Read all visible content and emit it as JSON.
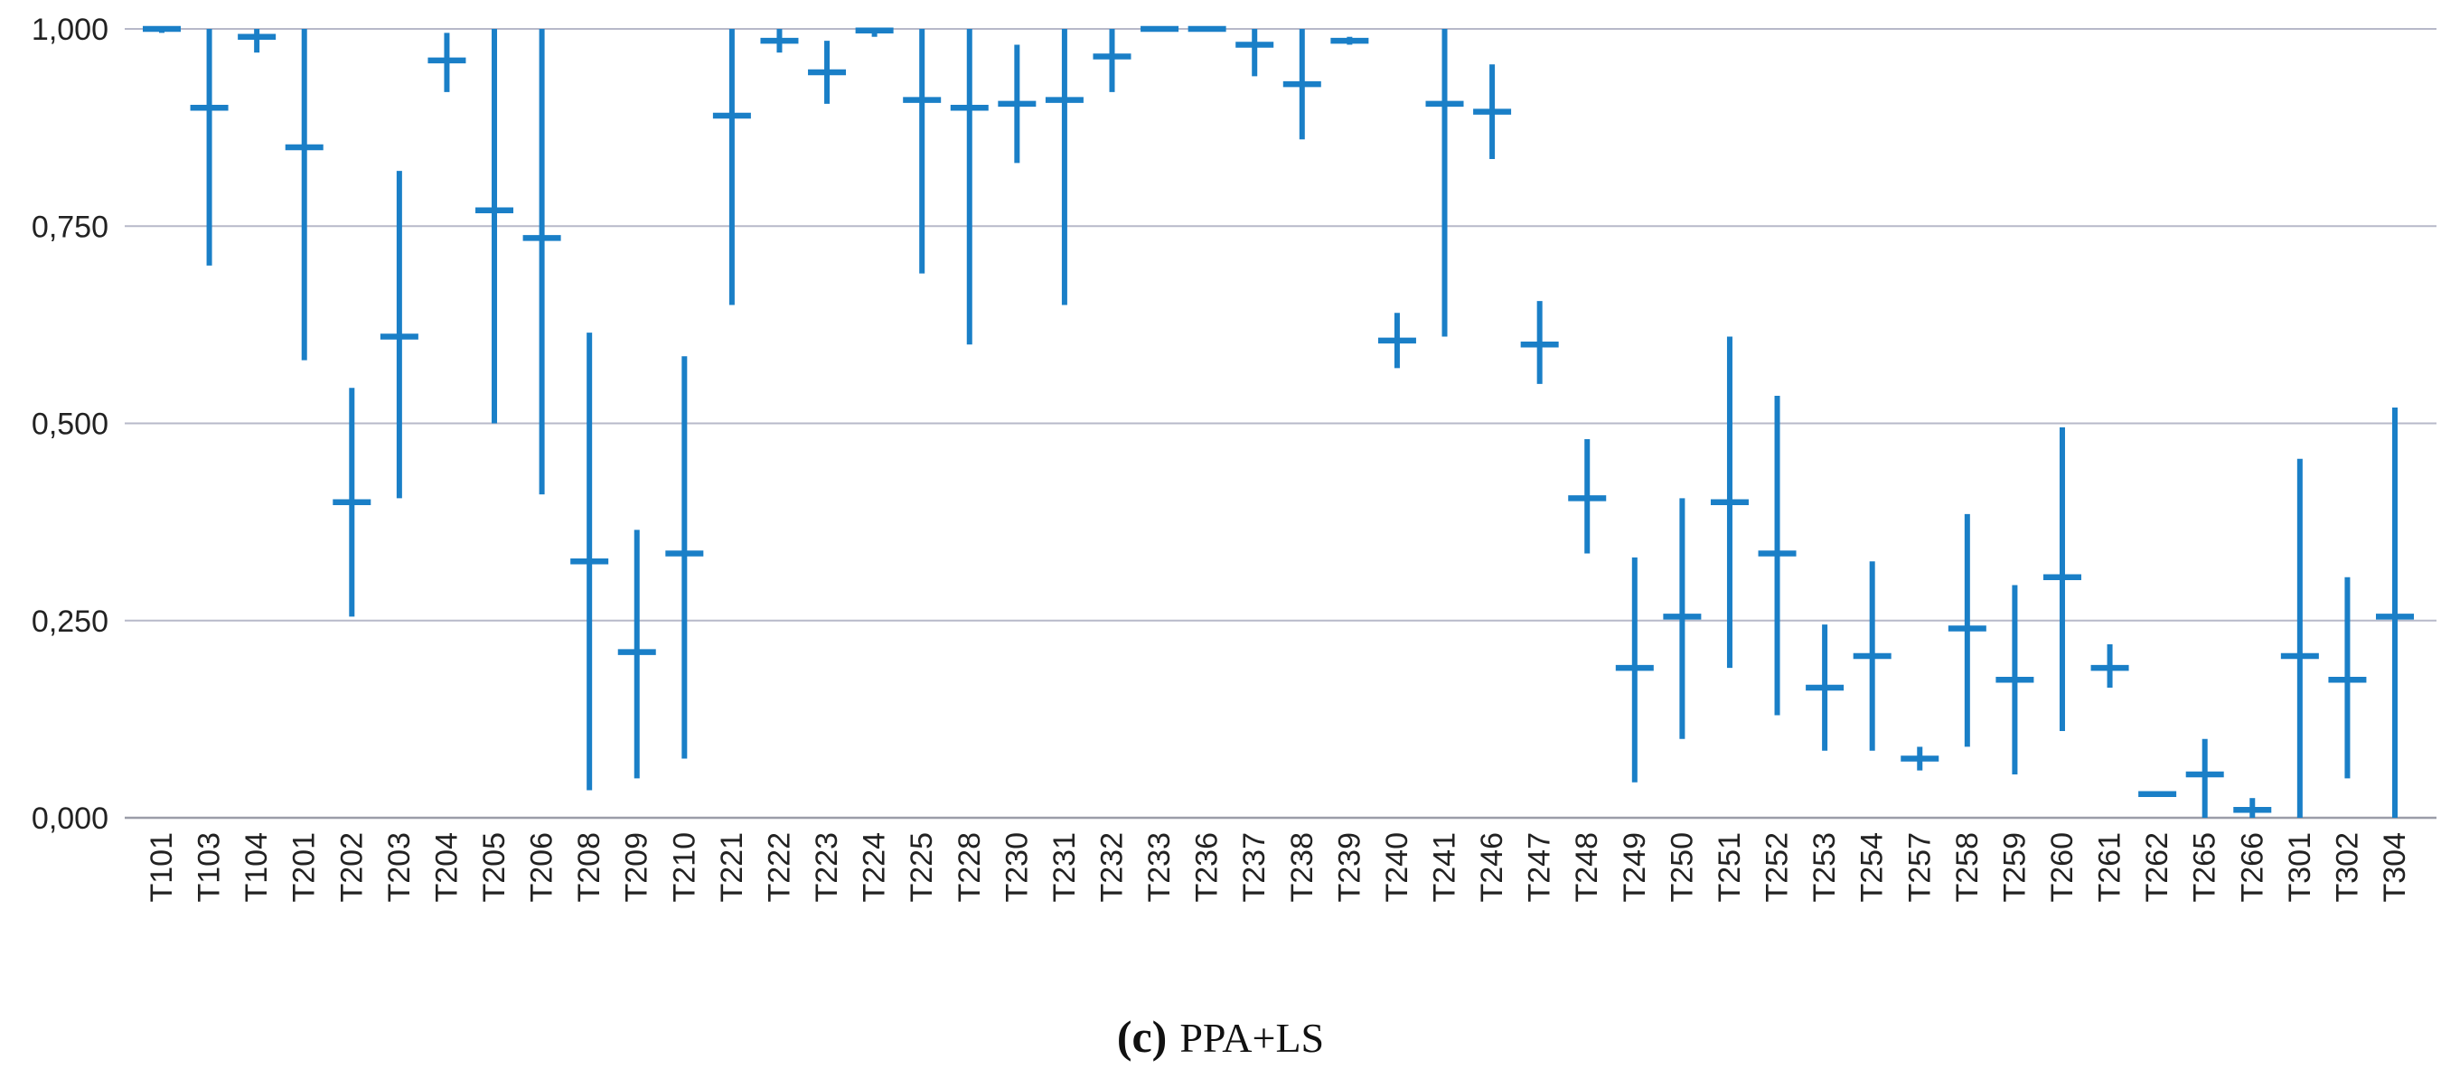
{
  "chart_data": {
    "type": "error-bar",
    "title": "",
    "xlabel": "",
    "ylabel": "",
    "ylim": [
      0,
      1
    ],
    "y_ticks": [
      "0,000",
      "0,250",
      "0,500",
      "0,750",
      "1,000"
    ],
    "y_tick_values": [
      0,
      0.25,
      0.5,
      0.75,
      1
    ],
    "color": "#1a7fc7",
    "categories": [
      "T101",
      "T103",
      "T104",
      "T201",
      "T202",
      "T203",
      "T204",
      "T205",
      "T206",
      "T208",
      "T209",
      "T210",
      "T221",
      "T222",
      "T223",
      "T224",
      "T225",
      "T228",
      "T230",
      "T231",
      "T232",
      "T233",
      "T236",
      "T237",
      "T238",
      "T239",
      "T240",
      "T241",
      "T246",
      "T247",
      "T248",
      "T249",
      "T250",
      "T251",
      "T252",
      "T253",
      "T254",
      "T257",
      "T258",
      "T259",
      "T260",
      "T261",
      "T262",
      "T265",
      "T266",
      "T301",
      "T302",
      "T304"
    ],
    "mid": [
      1.0,
      0.9,
      0.99,
      0.85,
      0.4,
      0.61,
      0.96,
      0.77,
      0.735,
      0.325,
      0.21,
      0.335,
      0.89,
      0.985,
      0.945,
      0.998,
      0.91,
      0.9,
      0.905,
      0.91,
      0.965,
      1.0,
      1.0,
      0.98,
      0.93,
      0.985,
      0.605,
      0.905,
      0.895,
      0.6,
      0.405,
      0.19,
      0.255,
      0.4,
      0.335,
      0.165,
      0.205,
      0.075,
      0.24,
      0.175,
      0.305,
      0.19,
      0.03,
      0.055,
      0.01,
      0.205,
      0.175,
      0.255
    ],
    "low": [
      0.995,
      0.7,
      0.97,
      0.58,
      0.255,
      0.405,
      0.92,
      0.5,
      0.41,
      0.035,
      0.05,
      0.075,
      0.65,
      0.97,
      0.905,
      0.99,
      0.69,
      0.6,
      0.83,
      0.65,
      0.92,
      0.998,
      0.998,
      0.94,
      0.86,
      0.98,
      0.57,
      0.61,
      0.835,
      0.55,
      0.335,
      0.045,
      0.1,
      0.19,
      0.13,
      0.085,
      0.085,
      0.06,
      0.09,
      0.055,
      0.11,
      0.165,
      0.03,
      0.0,
      0.0,
      0.0,
      0.05,
      0.0
    ],
    "high": [
      1.0,
      1.0,
      1.0,
      1.0,
      0.545,
      0.82,
      0.995,
      1.0,
      1.0,
      0.615,
      0.365,
      0.585,
      1.0,
      1.0,
      0.985,
      1.0,
      1.0,
      1.0,
      0.98,
      1.0,
      1.0,
      1.0,
      1.0,
      1.0,
      1.0,
      0.99,
      0.64,
      1.0,
      0.955,
      0.655,
      0.48,
      0.33,
      0.405,
      0.61,
      0.535,
      0.245,
      0.325,
      0.09,
      0.385,
      0.295,
      0.495,
      0.22,
      0.03,
      0.1,
      0.025,
      0.455,
      0.305,
      0.52
    ]
  },
  "caption": {
    "letter": "(c)",
    "text": "PPA+LS"
  }
}
